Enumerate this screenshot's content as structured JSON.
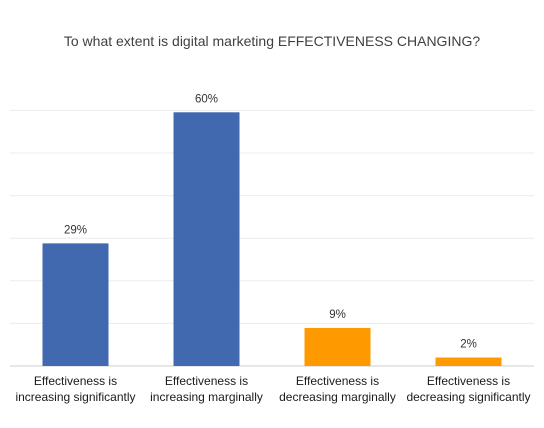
{
  "chart_data": {
    "type": "bar",
    "title": "To what extent is digital marketing EFFECTIVENESS CHANGING?",
    "categories": [
      [
        "Effectiveness is",
        "increasing significantly"
      ],
      [
        "Effectiveness is",
        "increasing marginally"
      ],
      [
        "Effectiveness is",
        "decreasing marginally"
      ],
      [
        "Effectiveness is",
        "decreasing significantly"
      ]
    ],
    "values": [
      29,
      60,
      9,
      2
    ],
    "data_labels": [
      "29%",
      "60%",
      "9%",
      "2%"
    ],
    "colors": [
      "#4169b0",
      "#4169b0",
      "#ff9900",
      "#ff9900"
    ],
    "ylim": [
      0,
      70
    ],
    "grid": true,
    "legend": "none",
    "xlabel": "",
    "ylabel": ""
  }
}
